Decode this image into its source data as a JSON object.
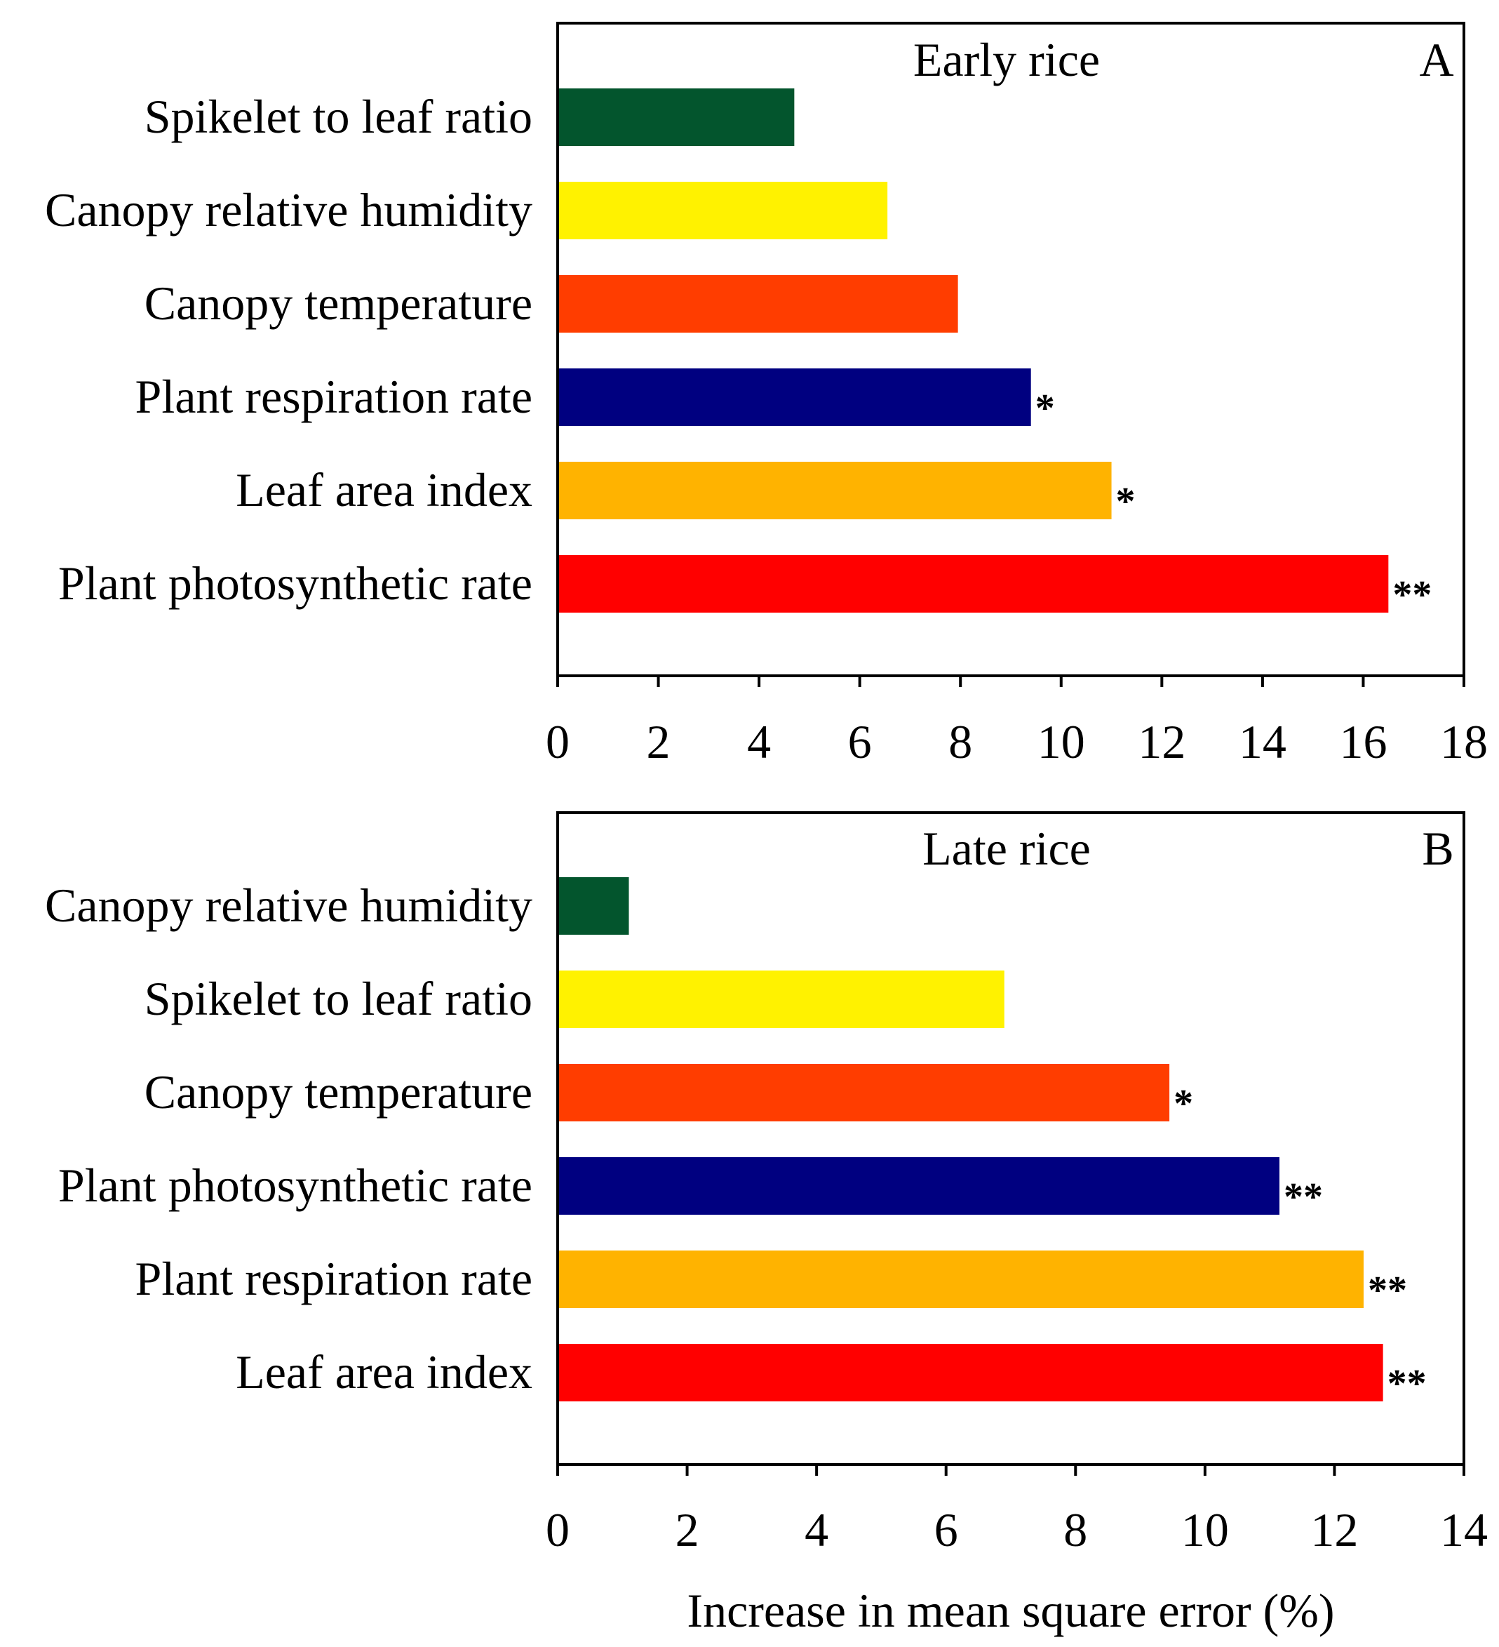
{
  "figure": {
    "xlabel": "Increase in mean square error (%)"
  },
  "chart_data": [
    {
      "type": "bar",
      "orientation": "horizontal",
      "title": "Early rice",
      "panel_label": "A",
      "xlabel": "",
      "ylabel": "",
      "xlim": [
        0,
        18
      ],
      "xticks": [
        "0",
        "2",
        "4",
        "6",
        "8",
        "10",
        "12",
        "14",
        "16",
        "18"
      ],
      "grid": false,
      "categories": [
        "Spikelet to leaf ratio",
        "Canopy relative humidity",
        "Canopy temperature",
        "Plant respiration rate",
        "Leaf area index",
        "Plant photosynthetic rate"
      ],
      "values": [
        4.7,
        6.55,
        7.95,
        9.4,
        11.0,
        16.5
      ],
      "significance": [
        "",
        "",
        "",
        "*",
        "*",
        "**"
      ],
      "colors": [
        "#03552D",
        "#FFF200",
        "#FF3D00",
        "#000080",
        "#FFB300",
        "#FF0000"
      ]
    },
    {
      "type": "bar",
      "orientation": "horizontal",
      "title": "Late rice",
      "panel_label": "B",
      "xlabel": "Increase in mean square error (%)",
      "ylabel": "",
      "xlim": [
        0,
        14
      ],
      "xticks": [
        "0",
        "2",
        "4",
        "6",
        "8",
        "10",
        "12",
        "14"
      ],
      "grid": false,
      "categories": [
        "Canopy relative humidity",
        "Spikelet to leaf ratio",
        "Canopy temperature",
        "Plant photosynthetic rate",
        "Plant respiration rate",
        "Leaf area index"
      ],
      "values": [
        1.1,
        6.9,
        9.45,
        11.15,
        12.45,
        12.75
      ],
      "significance": [
        "",
        "",
        "*",
        "**",
        "**",
        "**"
      ],
      "colors": [
        "#03552D",
        "#FFF200",
        "#FF3D00",
        "#000080",
        "#FFB300",
        "#FF0000"
      ]
    }
  ]
}
